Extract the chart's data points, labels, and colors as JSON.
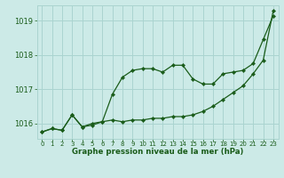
{
  "title": "Graphe pression niveau de la mer (hPa)",
  "background_color": "#cceae7",
  "plot_bg_color": "#cceae7",
  "grid_color": "#aad4d0",
  "line_color": "#1a5c1a",
  "xlim": [
    -0.5,
    23.5
  ],
  "ylim": [
    1015.55,
    1019.45
  ],
  "yticks": [
    1016,
    1017,
    1018,
    1019
  ],
  "xticks": [
    0,
    1,
    2,
    3,
    4,
    5,
    6,
    7,
    8,
    9,
    10,
    11,
    12,
    13,
    14,
    15,
    16,
    17,
    18,
    19,
    20,
    21,
    22,
    23
  ],
  "line1_x": [
    0,
    1,
    2,
    3,
    4,
    5,
    6,
    7,
    8,
    9,
    10,
    11,
    12,
    13,
    14,
    15,
    16,
    17,
    18,
    19,
    20,
    21,
    22,
    23
  ],
  "line1_y": [
    1015.75,
    1015.85,
    1015.8,
    1016.25,
    1015.9,
    1015.95,
    1016.05,
    1016.1,
    1016.05,
    1016.1,
    1016.1,
    1016.15,
    1016.15,
    1016.2,
    1016.2,
    1016.25,
    1016.35,
    1016.5,
    1016.7,
    1016.9,
    1017.1,
    1017.45,
    1017.85,
    1019.3
  ],
  "line2_x": [
    0,
    1,
    2,
    3,
    4,
    5,
    6,
    7,
    8,
    9,
    10,
    11,
    12,
    13,
    14,
    15,
    16,
    17,
    18,
    19,
    20,
    21,
    22,
    23
  ],
  "line2_y": [
    1015.75,
    1015.85,
    1015.8,
    1016.25,
    1015.9,
    1016.0,
    1016.05,
    1016.85,
    1017.35,
    1017.55,
    1017.6,
    1017.6,
    1017.5,
    1017.7,
    1017.7,
    1017.3,
    1017.15,
    1017.15,
    1017.45,
    1017.5,
    1017.55,
    1017.75,
    1018.45,
    1019.15
  ]
}
